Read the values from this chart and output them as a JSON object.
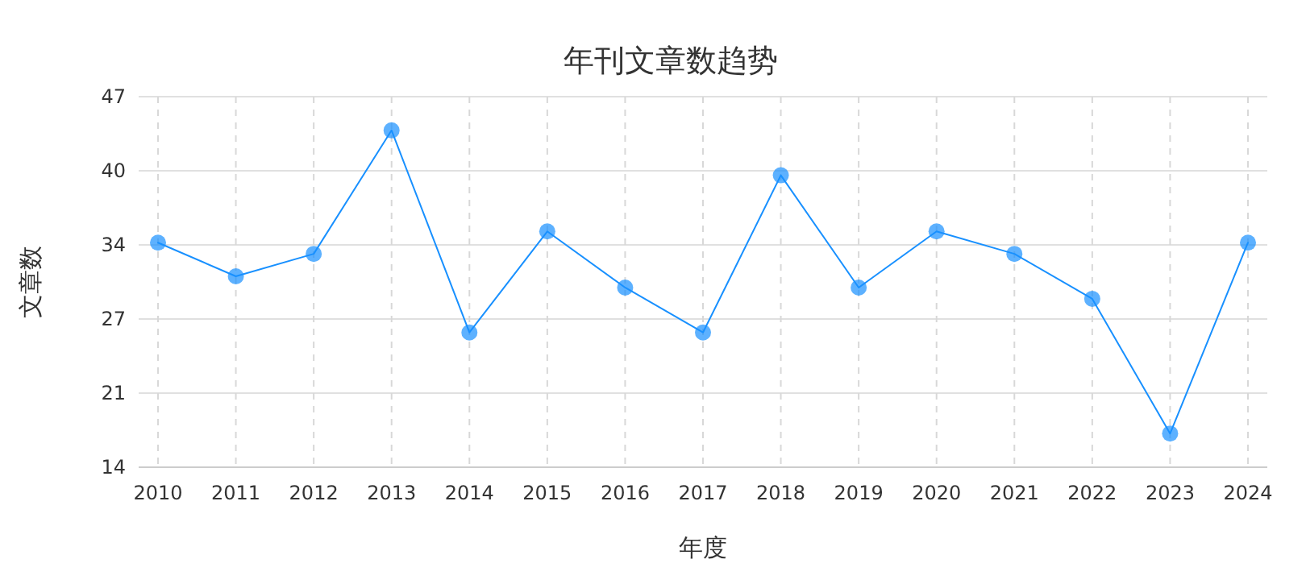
{
  "chart_data": {
    "type": "line",
    "title": "年刊文章数趋势",
    "xlabel": "年度",
    "ylabel": "文章数",
    "categories": [
      "2010",
      "2011",
      "2012",
      "2013",
      "2014",
      "2015",
      "2016",
      "2017",
      "2018",
      "2019",
      "2020",
      "2021",
      "2022",
      "2023",
      "2024"
    ],
    "series": [
      {
        "color": "#1890ff",
        "values": [
          34,
          31,
          33,
          44,
          26,
          35,
          30,
          26,
          40,
          30,
          35,
          33,
          29,
          17,
          34
        ]
      }
    ],
    "ylim": [
      14,
      47
    ],
    "yticks": [
      14,
      {
        "value": 20.6,
        "label": "21"
      },
      {
        "value": 27.2,
        "label": "27"
      },
      {
        "value": 33.8,
        "label": "34"
      },
      {
        "value": 40.4,
        "label": "40"
      },
      47
    ],
    "grid": true,
    "marker": "circle",
    "line_style": "solid"
  }
}
